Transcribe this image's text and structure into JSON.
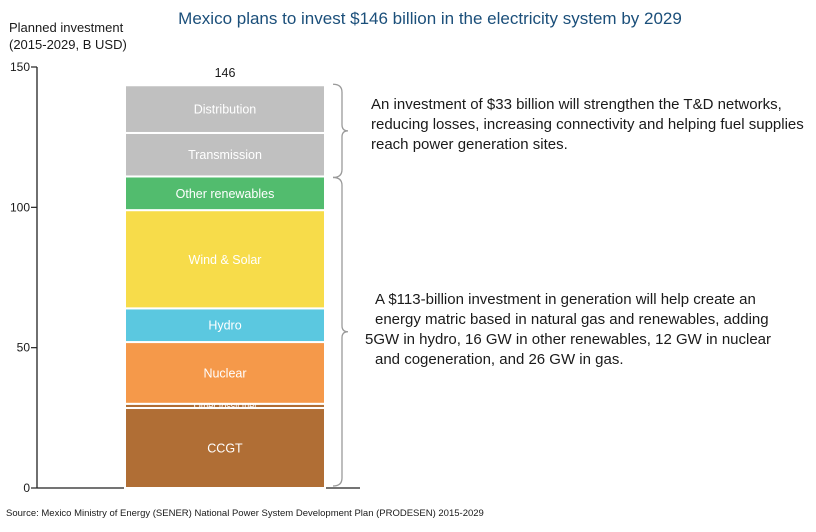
{
  "chart_data": {
    "type": "bar",
    "stacked": true,
    "title": "Mexico plans to invest $146 billion in the electricity system by 2029",
    "ylabel_line1": "Planned investment",
    "ylabel_line2": "(2015-2029, B USD)",
    "ylim": [
      0,
      150
    ],
    "yticks": [
      0,
      50,
      100,
      150
    ],
    "total_label": "146",
    "segments": [
      {
        "name": "CCGT",
        "value": 28.5,
        "color": "#b06e35"
      },
      {
        "name": "Other fossil fuel",
        "value": 1.5,
        "color": "#b06e35"
      },
      {
        "name": "Nuclear",
        "value": 22,
        "color": "#f5994a"
      },
      {
        "name": "Hydro",
        "value": 12,
        "color": "#5bc8e0"
      },
      {
        "name": "Wind & Solar",
        "value": 35,
        "color": "#f7dc4a"
      },
      {
        "name": "Other renewables",
        "value": 12,
        "color": "#52bc6e"
      },
      {
        "name": "Transmission",
        "value": 15.5,
        "color": "#c0c0c0"
      },
      {
        "name": "Distribution",
        "value": 17,
        "color": "#c0c0c0"
      }
    ],
    "annotations": [
      "An investment of $33 billion will strengthen the T&D networks, reducing losses, increasing connectivity and helping fuel supplies reach power generation sites.",
      "A $113-billion investment in generation will help create an energy matric based in natural gas and renewables, adding 5GW in hydro, 16 GW in other renewables, 12 GW in nuclear and cogeneration, and 26 GW in gas."
    ],
    "grid": false
  },
  "notes": {
    "note1": "An investment of $33 billion will strengthen the T&D networks, reducing losses, increasing connectivity and helping fuel supplies reach power generation sites.",
    "note2_lines": [
      "A $113-billion investment in generation will help create an",
      "energy matric based in natural gas and renewables, adding",
      "5GW in hydro, 16 GW in other renewables, 12 GW in nuclear",
      "and cogeneration, and 26 GW in gas."
    ]
  },
  "source": "Source: Mexico Ministry of Energy (SENER) National Power System Development Plan (PRODESEN) 2015-2029"
}
